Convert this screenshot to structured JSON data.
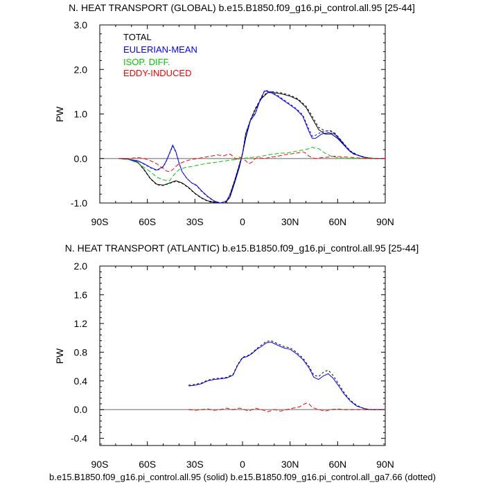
{
  "footer": "b.e15.B1850.f09_g16.pi_control.all.95 (solid) b.e15.B1850.f09_g16.pi_control.all_ga7.66 (dotted)",
  "colors": {
    "total": "#000000",
    "eulerian": "#0000ff",
    "isop": "#00c800",
    "eddy": "#ff0000",
    "zero": "#999999"
  },
  "chart_data": [
    {
      "type": "line",
      "title": "N. HEAT TRANSPORT (GLOBAL) b.e15.B1850.f09_g16.pi_control.all.95 [25-44]",
      "ylabel": "PW",
      "xlabel": "",
      "xlim": [
        -90,
        90
      ],
      "ylim": [
        -1.0,
        3.0
      ],
      "xticks": [
        -90,
        -60,
        -30,
        0,
        30,
        60,
        90
      ],
      "xtick_labels": [
        "90S",
        "60S",
        "30S",
        "0",
        "30N",
        "60N",
        "90N"
      ],
      "yticks": [
        -1.0,
        0.0,
        1.0,
        2.0,
        3.0
      ],
      "ytick_labels": [
        "-1.0",
        "0.0",
        "1.0",
        "2.0",
        "3.0"
      ],
      "zero_line": true,
      "legend": [
        "TOTAL",
        "EULERIAN-MEAN",
        "ISOP. DIFF.",
        "EDDY-INDUCED"
      ],
      "series": [
        {
          "name": "TOTAL",
          "color": "total",
          "style": "solid",
          "x": [
            -78,
            -72,
            -66,
            -62,
            -58,
            -54,
            -50,
            -46,
            -42,
            -38,
            -34,
            -30,
            -26,
            -22,
            -18,
            -14,
            -11,
            -8,
            -5,
            -2,
            0,
            2,
            5,
            8,
            12,
            16,
            20,
            25,
            30,
            35,
            40,
            44,
            48,
            52,
            56,
            60,
            64,
            68,
            72,
            76,
            80,
            85,
            90
          ],
          "y": [
            0.0,
            -0.02,
            -0.08,
            -0.25,
            -0.45,
            -0.58,
            -0.6,
            -0.55,
            -0.5,
            -0.55,
            -0.65,
            -0.78,
            -0.88,
            -0.95,
            -0.98,
            -1.0,
            -1.0,
            -0.88,
            -0.55,
            -0.2,
            0.1,
            0.45,
            0.85,
            1.1,
            1.35,
            1.48,
            1.48,
            1.45,
            1.4,
            1.32,
            1.15,
            0.9,
            0.65,
            0.55,
            0.55,
            0.45,
            0.3,
            0.15,
            0.08,
            0.03,
            0.01,
            0.0,
            0.0
          ]
        },
        {
          "name": "TOTAL (dotted)",
          "color": "total",
          "style": "dotted",
          "x": [
            -78,
            -72,
            -66,
            -62,
            -58,
            -54,
            -50,
            -46,
            -42,
            -38,
            -34,
            -30,
            -26,
            -22,
            -18,
            -14,
            -11,
            -8,
            -5,
            -2,
            0,
            2,
            5,
            8,
            12,
            16,
            20,
            25,
            30,
            35,
            40,
            44,
            48,
            52,
            56,
            60,
            64,
            68,
            72,
            76,
            80,
            85,
            90
          ],
          "y": [
            0.0,
            -0.02,
            -0.09,
            -0.26,
            -0.46,
            -0.59,
            -0.61,
            -0.56,
            -0.51,
            -0.56,
            -0.66,
            -0.79,
            -0.89,
            -0.96,
            -0.99,
            -1.0,
            -1.0,
            -0.87,
            -0.54,
            -0.18,
            0.12,
            0.47,
            0.87,
            1.12,
            1.37,
            1.5,
            1.5,
            1.47,
            1.42,
            1.34,
            1.18,
            0.95,
            0.7,
            0.62,
            0.62,
            0.5,
            0.33,
            0.17,
            0.09,
            0.03,
            0.01,
            0.0,
            0.0
          ]
        },
        {
          "name": "EULERIAN-MEAN",
          "color": "eulerian",
          "style": "solid",
          "x": [
            -78,
            -72,
            -66,
            -62,
            -58,
            -54,
            -50,
            -48,
            -46,
            -44,
            -42,
            -40,
            -38,
            -35,
            -32,
            -29,
            -26,
            -22,
            -18,
            -14,
            -12,
            -10,
            -8,
            -5,
            -2,
            0,
            2,
            5,
            8,
            11,
            14,
            16,
            18,
            22,
            26,
            30,
            34,
            38,
            42,
            44,
            46,
            50,
            54,
            58,
            62,
            66,
            70,
            74,
            78,
            82,
            86,
            90
          ],
          "y": [
            0.0,
            -0.02,
            -0.05,
            -0.12,
            -0.2,
            -0.26,
            -0.18,
            -0.05,
            0.12,
            0.3,
            0.15,
            -0.1,
            -0.3,
            -0.45,
            -0.55,
            -0.6,
            -0.72,
            -0.85,
            -0.95,
            -1.0,
            -0.98,
            -0.95,
            -0.82,
            -0.5,
            -0.15,
            0.1,
            0.55,
            0.85,
            1.0,
            1.3,
            1.52,
            1.5,
            1.48,
            1.4,
            1.3,
            1.2,
            1.1,
            0.95,
            0.6,
            0.45,
            0.45,
            0.55,
            0.58,
            0.55,
            0.4,
            0.22,
            0.1,
            0.06,
            0.02,
            0.0,
            0.0,
            0.0
          ]
        },
        {
          "name": "EULERIAN-MEAN (dotted)",
          "color": "eulerian",
          "style": "dotted",
          "x": [
            -78,
            -72,
            -66,
            -62,
            -58,
            -54,
            -50,
            -48,
            -46,
            -44,
            -42,
            -40,
            -38,
            -35,
            -32,
            -29,
            -26,
            -22,
            -18,
            -14,
            -12,
            -10,
            -8,
            -5,
            -2,
            0,
            2,
            5,
            8,
            11,
            14,
            16,
            18,
            22,
            26,
            30,
            34,
            38,
            42,
            44,
            46,
            50,
            54,
            58,
            62,
            66,
            70,
            74,
            78,
            82,
            86,
            90
          ],
          "y": [
            0.0,
            -0.02,
            -0.05,
            -0.13,
            -0.21,
            -0.27,
            -0.19,
            -0.06,
            0.11,
            0.28,
            0.14,
            -0.1,
            -0.3,
            -0.45,
            -0.55,
            -0.61,
            -0.73,
            -0.86,
            -0.96,
            -1.0,
            -0.98,
            -0.95,
            -0.81,
            -0.49,
            -0.13,
            0.12,
            0.57,
            0.87,
            1.02,
            1.32,
            1.53,
            1.52,
            1.5,
            1.42,
            1.32,
            1.22,
            1.12,
            0.98,
            0.65,
            0.5,
            0.52,
            0.6,
            0.62,
            0.58,
            0.42,
            0.24,
            0.11,
            0.06,
            0.02,
            0.0,
            0.0,
            0.0
          ]
        },
        {
          "name": "ISOP. DIFF.",
          "color": "isop",
          "style": "dashed",
          "x": [
            -78,
            -72,
            -66,
            -62,
            -58,
            -54,
            -50,
            -46,
            -44,
            -42,
            -40,
            -36,
            -32,
            -28,
            -24,
            -20,
            -16,
            -12,
            -8,
            -4,
            0,
            4,
            8,
            12,
            16,
            20,
            24,
            28,
            32,
            36,
            40,
            44,
            48,
            52,
            56,
            60,
            64,
            68,
            72,
            76,
            80,
            85,
            90
          ],
          "y": [
            0.0,
            -0.02,
            -0.1,
            -0.2,
            -0.3,
            -0.42,
            -0.48,
            -0.5,
            -0.4,
            -0.32,
            -0.25,
            -0.2,
            -0.18,
            -0.15,
            -0.12,
            -0.1,
            -0.08,
            -0.06,
            -0.04,
            -0.02,
            0.0,
            0.02,
            0.03,
            0.05,
            0.08,
            0.1,
            0.12,
            0.12,
            0.15,
            0.18,
            0.2,
            0.25,
            0.22,
            0.12,
            0.05,
            0.02,
            0.01,
            0.0,
            0.0,
            0.0,
            0.0,
            0.0,
            0.0
          ]
        },
        {
          "name": "EDDY-INDUCED",
          "color": "eddy",
          "style": "dashed",
          "x": [
            -78,
            -72,
            -66,
            -62,
            -58,
            -54,
            -52,
            -50,
            -48,
            -46,
            -44,
            -42,
            -40,
            -36,
            -32,
            -28,
            -24,
            -20,
            -16,
            -12,
            -8,
            -6,
            -4,
            -2,
            0,
            2,
            4,
            6,
            8,
            10,
            14,
            18,
            22,
            26,
            30,
            34,
            38,
            40,
            42,
            44,
            46,
            50,
            54,
            58,
            62,
            66,
            70,
            74,
            78,
            82,
            86,
            90
          ],
          "y": [
            0.0,
            0.0,
            0.02,
            0.0,
            -0.05,
            -0.12,
            -0.18,
            -0.22,
            -0.28,
            -0.3,
            -0.25,
            -0.18,
            -0.12,
            -0.06,
            -0.02,
            0.0,
            0.03,
            0.05,
            0.08,
            0.06,
            0.1,
            0.05,
            -0.02,
            0.03,
            0.0,
            -0.05,
            -0.12,
            -0.08,
            0.0,
            0.02,
            0.0,
            0.03,
            0.05,
            0.08,
            0.1,
            0.12,
            0.15,
            0.12,
            0.05,
            0.02,
            0.0,
            0.02,
            0.03,
            0.05,
            0.04,
            0.03,
            0.02,
            0.01,
            0.0,
            0.0,
            0.0,
            0.0
          ]
        }
      ]
    },
    {
      "type": "line",
      "title": "N. HEAT TRANSPORT (ATLANTIC) b.e15.B1850.f09_g16.pi_control.all.95 [25-44]",
      "ylabel": "PW",
      "xlabel": "",
      "xlim": [
        -90,
        90
      ],
      "ylim": [
        -0.5,
        2.0
      ],
      "xticks": [
        -90,
        -60,
        -30,
        0,
        30,
        60,
        90
      ],
      "xtick_labels": [
        "90S",
        "60S",
        "30S",
        "0",
        "30N",
        "60N",
        "90N"
      ],
      "yticks": [
        -0.4,
        0.0,
        0.4,
        0.8,
        1.2,
        1.6,
        2.0
      ],
      "ytick_labels": [
        "-0.4",
        "0.0",
        "0.4",
        "0.8",
        "1.2",
        "1.6",
        "2.0"
      ],
      "zero_line": true,
      "series": [
        {
          "name": "EULERIAN-MEAN",
          "color": "eulerian",
          "style": "solid",
          "x": [
            -34,
            -30,
            -26,
            -22,
            -18,
            -14,
            -10,
            -6,
            -3,
            0,
            3,
            6,
            9,
            12,
            15,
            18,
            22,
            26,
            30,
            34,
            38,
            42,
            45,
            48,
            51,
            54,
            57,
            60,
            64,
            68,
            72,
            76,
            80,
            85,
            90
          ],
          "y": [
            0.33,
            0.34,
            0.36,
            0.4,
            0.42,
            0.43,
            0.44,
            0.48,
            0.62,
            0.72,
            0.74,
            0.78,
            0.84,
            0.88,
            0.93,
            0.94,
            0.9,
            0.86,
            0.84,
            0.78,
            0.7,
            0.58,
            0.45,
            0.42,
            0.47,
            0.5,
            0.44,
            0.35,
            0.22,
            0.12,
            0.05,
            0.02,
            0.0,
            0.0,
            0.0
          ]
        },
        {
          "name": "EULERIAN-MEAN (dotted)",
          "color": "total",
          "style": "dotted",
          "x": [
            -34,
            -30,
            -26,
            -22,
            -18,
            -14,
            -10,
            -6,
            -3,
            0,
            3,
            6,
            9,
            12,
            15,
            18,
            22,
            26,
            30,
            34,
            38,
            42,
            45,
            48,
            51,
            54,
            57,
            60,
            64,
            68,
            72,
            76,
            80,
            85,
            90
          ],
          "y": [
            0.34,
            0.35,
            0.37,
            0.41,
            0.43,
            0.44,
            0.45,
            0.49,
            0.63,
            0.73,
            0.75,
            0.79,
            0.85,
            0.9,
            0.95,
            0.96,
            0.92,
            0.88,
            0.86,
            0.8,
            0.72,
            0.6,
            0.48,
            0.46,
            0.52,
            0.55,
            0.48,
            0.38,
            0.24,
            0.13,
            0.06,
            0.02,
            0.0,
            0.0,
            0.0
          ]
        },
        {
          "name": "EDDY-INDUCED",
          "color": "eddy",
          "style": "dashed",
          "x": [
            -34,
            -30,
            -26,
            -22,
            -18,
            -14,
            -10,
            -6,
            -2,
            0,
            4,
            8,
            12,
            16,
            20,
            24,
            28,
            32,
            36,
            40,
            42,
            44,
            48,
            52,
            56,
            60,
            64,
            68,
            72,
            76,
            80,
            85,
            90
          ],
          "y": [
            0.0,
            -0.01,
            0.0,
            0.01,
            -0.01,
            0.0,
            0.02,
            0.0,
            0.02,
            0.01,
            -0.02,
            0.02,
            0.0,
            -0.03,
            0.0,
            -0.02,
            0.0,
            0.02,
            0.04,
            0.09,
            0.08,
            0.03,
            0.0,
            -0.02,
            0.0,
            0.01,
            0.0,
            0.0,
            0.0,
            0.0,
            0.0,
            0.0,
            0.0
          ]
        }
      ]
    }
  ]
}
